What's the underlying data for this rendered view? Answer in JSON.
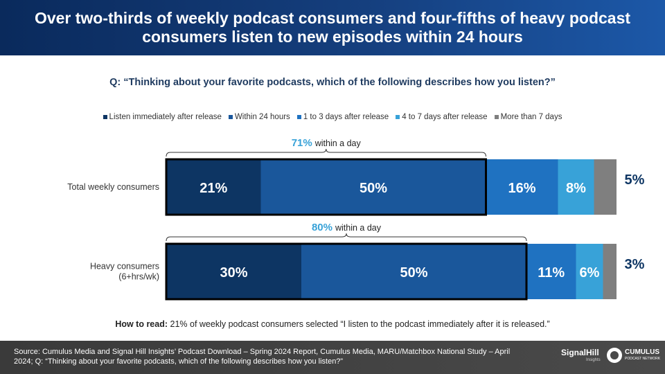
{
  "header": {
    "title": "Over two-thirds of weekly podcast consumers and four-fifths of heavy podcast consumers listen to new episodes within 24 hours"
  },
  "question": "Q: “Thinking about your favorite podcasts, which of the following describes how you listen?”",
  "chart_data": {
    "type": "bar",
    "stacked": true,
    "orientation": "horizontal",
    "legend_position": "top",
    "categories": [
      "Total weekly consumers",
      "Heavy consumers\n(6+hrs/wk)"
    ],
    "series": [
      {
        "name": "Listen immediately after release",
        "color": "#0d3563",
        "values": [
          21,
          30
        ]
      },
      {
        "name": "Within 24 hours",
        "color": "#1a579b",
        "values": [
          50,
          50
        ]
      },
      {
        "name": "1 to 3 days after release",
        "color": "#1f72c1",
        "values": [
          16,
          11
        ]
      },
      {
        "name": "4 to 7 days after release",
        "color": "#38a2d8",
        "values": [
          8,
          6
        ]
      },
      {
        "name": "More than 7 days",
        "color": "#7f7f7f",
        "values": [
          5,
          3
        ]
      }
    ],
    "data_labels": [
      [
        "21%",
        "50%",
        "16%",
        "8%",
        "5%"
      ],
      [
        "30%",
        "50%",
        "11%",
        "6%",
        "3%"
      ]
    ],
    "brackets": [
      {
        "value": "71%",
        "text": "within a day"
      },
      {
        "value": "80%",
        "text": "within a day"
      }
    ],
    "xlim": [
      0,
      100
    ]
  },
  "how_to_read": {
    "label": "How to read:",
    "text": "21% of weekly podcast consumers selected “I listen to the podcast immediately after it is released.”"
  },
  "footer": {
    "source": "Source: Cumulus Media and Signal Hill Insights’ Podcast Download – Spring 2024 Report, Cumulus Media, MARU/Matchbox National Study – April 2024; Q: “Thinking about your favorite podcasts, which of the following describes how you listen?”",
    "logo_signalhill": "SignalHill",
    "logo_signalhill_sub": "Insights",
    "logo_cumulus": "CUMULUS",
    "logo_cumulus_sub": "PODCAST NETWORK"
  }
}
